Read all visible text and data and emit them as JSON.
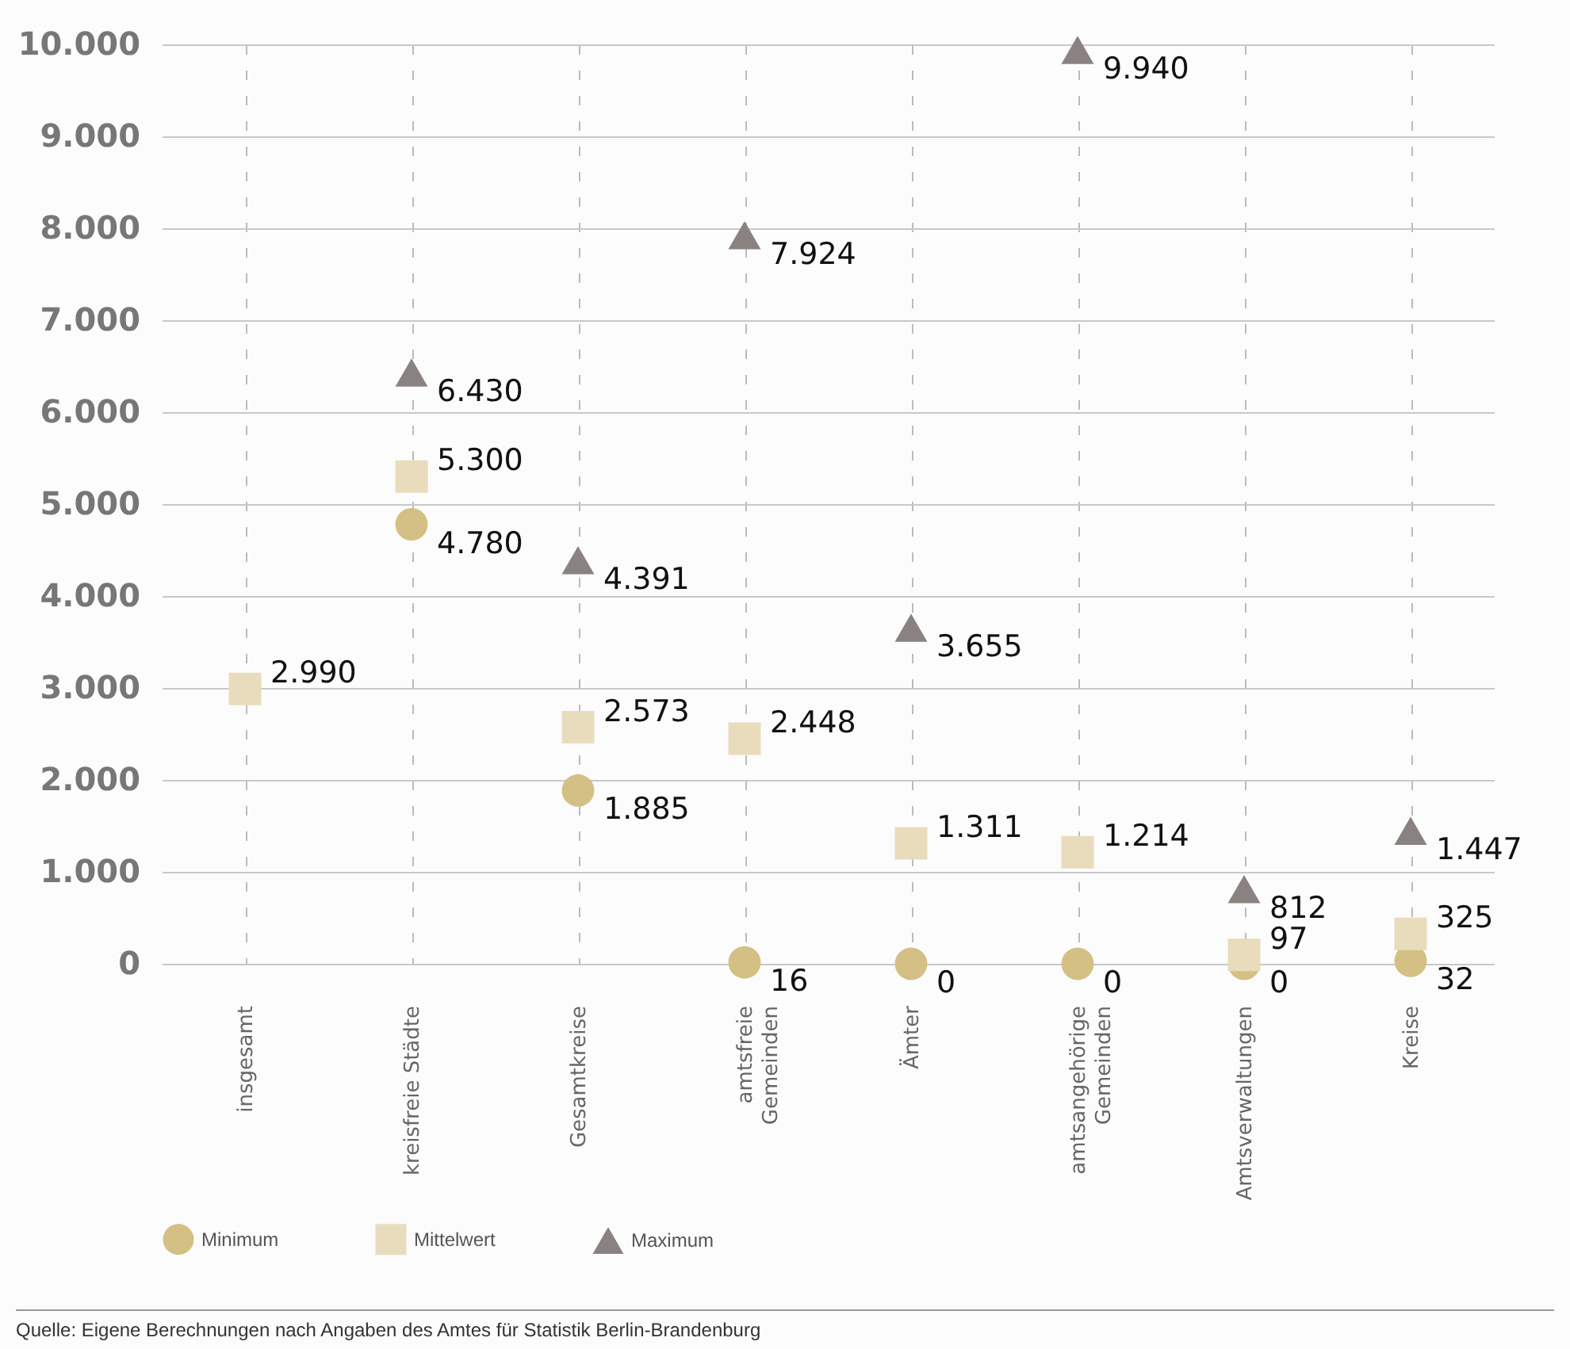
{
  "chart_data": {
    "type": "scatter",
    "categories": [
      "insgesamt",
      "kreisfreie Städte",
      "Gesamtkreise",
      "amtsfreie\nGemeinden",
      "Ämter",
      "amtsangehörige\nGemeinden",
      "Amtsverwaltungen",
      "Kreise"
    ],
    "series": [
      {
        "name": "Minimum",
        "color": "#d4c084",
        "marker": "circle",
        "values": [
          null,
          4780,
          1885,
          16,
          0,
          0,
          0,
          32
        ],
        "value_labels": [
          null,
          "4.780",
          "1.885",
          "16",
          "0",
          "0",
          "0",
          "32"
        ]
      },
      {
        "name": "Mittelwert",
        "color": "#e8dcbc",
        "marker": "square",
        "values": [
          2990,
          5300,
          2573,
          2448,
          1311,
          1214,
          97,
          325
        ],
        "value_labels": [
          "2.990",
          "5.300",
          "2.573",
          "2.448",
          "1.311",
          "1.214",
          "97",
          "325"
        ]
      },
      {
        "name": "Maximum",
        "color": "#8a8280",
        "marker": "triangle",
        "values": [
          null,
          6430,
          4391,
          7924,
          3655,
          9940,
          812,
          1447
        ],
        "value_labels": [
          null,
          "6.430",
          "4.391",
          "7.924",
          "3.655",
          "9.940",
          "812",
          "1.447"
        ]
      }
    ],
    "ylim": [
      0,
      10000
    ],
    "yticks": [
      {
        "value": 0,
        "label": "0"
      },
      {
        "value": 1000,
        "label": "1.000"
      },
      {
        "value": 2000,
        "label": "2.000"
      },
      {
        "value": 3000,
        "label": "3.000"
      },
      {
        "value": 4000,
        "label": "4.000"
      },
      {
        "value": 5000,
        "label": "5.000"
      },
      {
        "value": 6000,
        "label": "6.000"
      },
      {
        "value": 7000,
        "label": "7.000"
      },
      {
        "value": 8000,
        "label": "8.000"
      },
      {
        "value": 9000,
        "label": "9.000"
      },
      {
        "value": 10000,
        "label": "10.000"
      }
    ],
    "grid": true,
    "legend": "bottom left",
    "annotations": [
      "Quelle:  Eigene Berechnungen nach Angaben des Amtes für Statistik Berlin-Brandenburg"
    ]
  }
}
